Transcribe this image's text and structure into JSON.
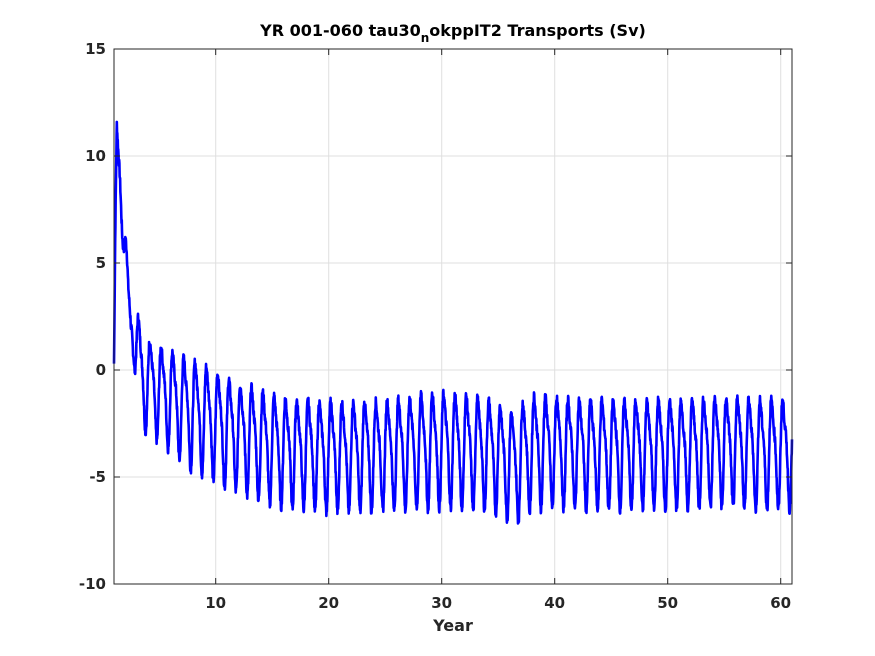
{
  "chart_data": {
    "type": "line",
    "title_main": "YR 001-060 tau30",
    "title_sub": "n",
    "title_rest": "okppIT2 Transports (Sv)",
    "xlabel": "Year",
    "ylabel": "",
    "xlim": [
      1,
      61
    ],
    "ylim": [
      -10,
      15
    ],
    "xticks": [
      10,
      20,
      30,
      40,
      50,
      60
    ],
    "yticks": [
      -10,
      -5,
      0,
      5,
      10,
      15
    ],
    "grid": true,
    "legend": "none",
    "line_color": "#0000ff",
    "series": [
      {
        "x": [
          1.0,
          1.1,
          1.25,
          1.5,
          1.75,
          2.0,
          2.25,
          2.5,
          2.75,
          3.0,
          3.25,
          3.5,
          4,
          5,
          6,
          7,
          8,
          9,
          10,
          11,
          12,
          13,
          14,
          15,
          16,
          17,
          18,
          19,
          20,
          22,
          24,
          26,
          28,
          30,
          32,
          34,
          35,
          36,
          36.5,
          37,
          38,
          40,
          42,
          44,
          46,
          48,
          50,
          52,
          54,
          56,
          58,
          60,
          61
        ],
        "mean": [
          0.3,
          5.0,
          10.0,
          9.0,
          7.5,
          6.0,
          3.0,
          1.8,
          2.5,
          1.0,
          0.2,
          -0.2,
          -0.6,
          -0.9,
          -1.2,
          -1.6,
          -1.9,
          -2.1,
          -2.4,
          -2.7,
          -2.9,
          -3.1,
          -3.3,
          -3.5,
          -3.6,
          -3.7,
          -3.7,
          -3.8,
          -3.8,
          -3.8,
          -3.8,
          -3.7,
          -3.6,
          -3.5,
          -3.6,
          -3.7,
          -3.9,
          -4.2,
          -4.4,
          -4.0,
          -3.6,
          -3.6,
          -3.7,
          -3.7,
          -3.7,
          -3.7,
          -3.7,
          -3.7,
          -3.6,
          -3.6,
          -3.7,
          -3.7,
          -3.7
        ],
        "amplitude": [
          0.0,
          1.0,
          1.8,
          1.5,
          1.2,
          1.0,
          1.2,
          1.5,
          1.7,
          1.9,
          2.0,
          2.0,
          2.0,
          2.0,
          2.1,
          2.2,
          2.3,
          2.3,
          2.3,
          2.3,
          2.3,
          2.3,
          2.3,
          2.3,
          2.3,
          2.3,
          2.3,
          2.3,
          2.3,
          2.3,
          2.3,
          2.3,
          2.4,
          2.4,
          2.4,
          2.3,
          2.3,
          2.3,
          2.3,
          2.4,
          2.4,
          2.3,
          2.3,
          2.3,
          2.3,
          2.3,
          2.3,
          2.3,
          2.3,
          2.3,
          2.3,
          2.3,
          2.3
        ],
        "period": 1.0
      }
    ]
  }
}
